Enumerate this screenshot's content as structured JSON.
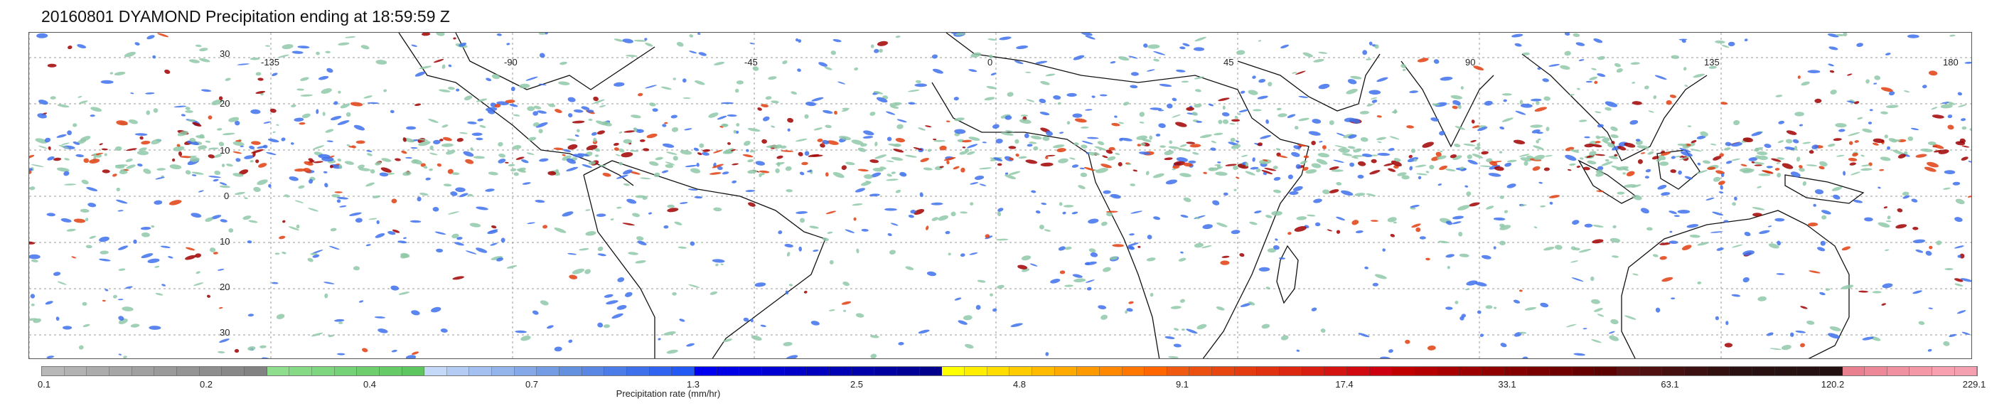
{
  "title": "20160801 DYAMOND Precipitation ending at 18:59:59 Z",
  "map": {
    "lat_ticks": [
      "30",
      "20",
      "10",
      "0",
      "10",
      "20",
      "30"
    ],
    "lon_ticks": [
      "-135",
      "-90",
      "-45",
      "0",
      "45",
      "90",
      "135",
      "180"
    ],
    "grid": "dotted",
    "land_outline_color": "#111111"
  },
  "colorbar": {
    "title": "Precipitation rate (mm/hr)",
    "tick_labels": [
      "0.1",
      "0.2",
      "0.4",
      "0.7",
      "1.3",
      "2.5",
      "4.8",
      "9.1",
      "17.4",
      "33.1",
      "63.1",
      "120.2",
      "229.1"
    ],
    "colors": [
      "#b8b8b8",
      "#b2b2b2",
      "#acacac",
      "#a6a6a6",
      "#a0a0a0",
      "#9a9a9a",
      "#949494",
      "#8e8e8e",
      "#888888",
      "#828282",
      "#8ede8e",
      "#86da86",
      "#7ed67e",
      "#76d276",
      "#6ece6e",
      "#66ca66",
      "#5ec65e",
      "#c4d8f8",
      "#b4ccf4",
      "#a4c0f0",
      "#94b4ec",
      "#84a8e8",
      "#749ce4",
      "#6490e0",
      "#5a86e4",
      "#4c7ce8",
      "#3e70ec",
      "#3064f0",
      "#2258f4",
      "#0000f0",
      "#0000e6",
      "#0000dc",
      "#0000d2",
      "#0000c8",
      "#0000be",
      "#0000b4",
      "#0000aa",
      "#0000a0",
      "#000096",
      "#00008c",
      "#ffff00",
      "#ffee00",
      "#ffdd00",
      "#ffcc00",
      "#ffbb00",
      "#ffaa00",
      "#ff9900",
      "#ff8800",
      "#ff7700",
      "#ff6600",
      "#f05a10",
      "#ec5010",
      "#e84610",
      "#e43c10",
      "#e03210",
      "#dc2810",
      "#d81e10",
      "#d41410",
      "#d00a10",
      "#cc0010",
      "#c00000",
      "#b40000",
      "#a80000",
      "#9c0000",
      "#900000",
      "#840000",
      "#7a0000",
      "#700000",
      "#660000",
      "#5c0000",
      "#5a1010",
      "#501010",
      "#461010",
      "#3c1010",
      "#321010",
      "#2a1010",
      "#281010",
      "#261010",
      "#241010",
      "#221010",
      "#e88090",
      "#ec8898",
      "#f090a0",
      "#f498a8",
      "#f8a0b0",
      "#f4a0b0"
    ]
  },
  "colors": {
    "grid": "#9a9a9a",
    "light_rain": "#8fc8a8",
    "moderate_rain": "#3e70ec",
    "heavy_rain": "#e04010",
    "intense_rain": "#a00000"
  }
}
